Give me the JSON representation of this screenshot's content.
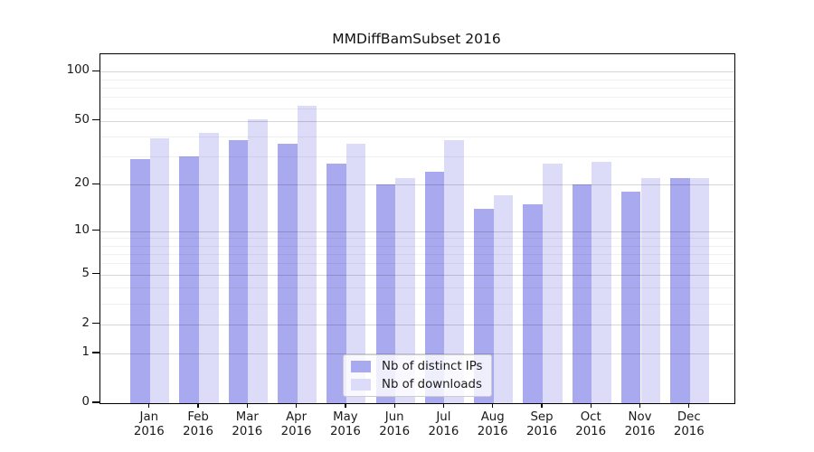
{
  "title": "MMDiffBamSubset 2016",
  "chart_data": {
    "type": "bar",
    "title": "MMDiffBamSubset 2016",
    "categories": [
      "Jan",
      "Feb",
      "Mar",
      "Apr",
      "May",
      "Jun",
      "Jul",
      "Aug",
      "Sep",
      "Oct",
      "Nov",
      "Dec"
    ],
    "year": "2016",
    "series": [
      {
        "name": "Nb of distinct IPs",
        "color": "#a9a9f0",
        "values": [
          29,
          30,
          38,
          36,
          27,
          20,
          24,
          14,
          15,
          20,
          18,
          22
        ]
      },
      {
        "name": "Nb of downloads",
        "color": "#dcdcf8",
        "values": [
          39,
          42,
          51,
          62,
          36,
          22,
          38,
          17,
          27,
          28,
          22,
          22
        ]
      }
    ],
    "xlabel": "",
    "ylabel": "",
    "y_scale": "log10(1+x)",
    "y_ticks": [
      0,
      1,
      2,
      5,
      10,
      20,
      50,
      100
    ],
    "y_minor_gridlines": [
      3,
      4,
      6,
      7,
      8,
      9,
      30,
      40,
      60,
      70,
      80,
      90
    ],
    "ylim": [
      0,
      128
    ],
    "grid": true,
    "legend_position": "lower center"
  }
}
